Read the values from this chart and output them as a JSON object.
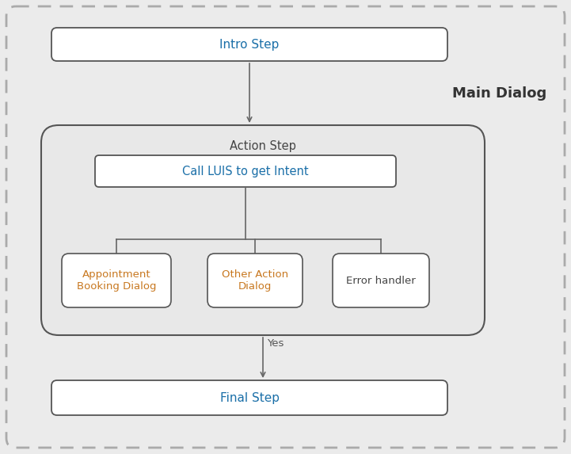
{
  "bg_color": "#ebebeb",
  "title": "Main Dialog",
  "title_color": "#333333",
  "title_fontsize": 13,
  "intro_label": "Intro Step",
  "intro_color": "#1a6fa8",
  "action_step_label": "Action Step",
  "action_step_color": "#444444",
  "luis_label": "Call LUIS to get Intent",
  "luis_color": "#1a6fa8",
  "appt_label": "Appointment\nBooking Dialog",
  "appt_color": "#c87820",
  "other_label": "Other Action\nDialog",
  "other_color": "#c87820",
  "error_label": "Error handler",
  "error_color": "#444444",
  "final_label": "Final Step",
  "final_color": "#1a6fa8",
  "yes_label": "Yes",
  "yes_color": "#555555",
  "arrow_color": "#666666",
  "line_color": "#666666",
  "outer_dash_color": "#aaaaaa",
  "outer_fill": "#ebebeb",
  "action_fill": "#e8e8e8",
  "white_box": "#ffffff"
}
